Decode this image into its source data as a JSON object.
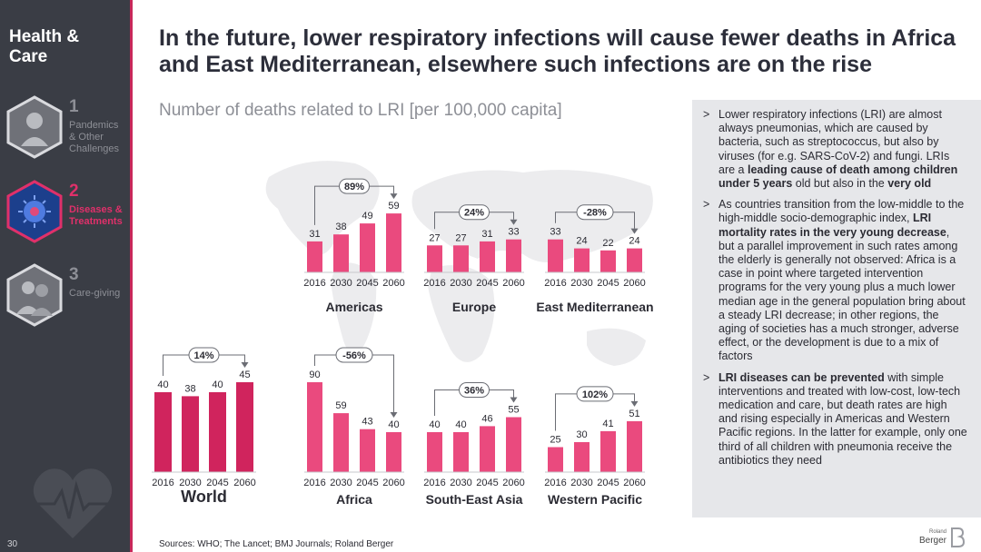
{
  "sidebar": {
    "brand": "Health & Care",
    "items": [
      {
        "num": "1",
        "label": "Pandemics & Other Challenges"
      },
      {
        "num": "2",
        "label": "Diseases & Treatments"
      },
      {
        "num": "3",
        "label": "Care-giving"
      }
    ],
    "page_number": "30"
  },
  "header": {
    "title": "In the future, lower respiratory infections will cause fewer deaths in Africa and East Mediterranean, elsewhere such infections are on the rise",
    "subtitle": "Number of deaths related to LRI [per 100,000 capita]"
  },
  "chart_data": {
    "type": "bar",
    "title": "Number of deaths related to LRI [per 100,000 capita]",
    "categories": [
      "2016",
      "2030",
      "2045",
      "2060"
    ],
    "series": [
      {
        "name": "World",
        "values": [
          40,
          38,
          40,
          45
        ],
        "change": "14%"
      },
      {
        "name": "Americas",
        "values": [
          31,
          38,
          49,
          59
        ],
        "change": "89%"
      },
      {
        "name": "Europe",
        "values": [
          27,
          27,
          31,
          33
        ],
        "change": "24%"
      },
      {
        "name": "East Mediterranean",
        "values": [
          33,
          24,
          22,
          24
        ],
        "change": "-28%"
      },
      {
        "name": "Africa",
        "values": [
          90,
          59,
          43,
          40
        ],
        "change": "-56%"
      },
      {
        "name": "South-East Asia",
        "values": [
          40,
          40,
          46,
          55
        ],
        "change": "36%"
      },
      {
        "name": "Western Pacific",
        "values": [
          25,
          30,
          41,
          51
        ],
        "change": "102%"
      }
    ],
    "colors": {
      "world": "#d0245d",
      "region": "#ea4a7e"
    }
  },
  "notes": [
    {
      "parts": [
        {
          "t": "Lower respiratory infections (LRI) are almost always pneumonias, which are caused by bacteria, such as streptococcus, but also by viruses (for e.g. SARS-CoV-2) and fungi. LRIs are a ",
          "b": false
        },
        {
          "t": "leading cause of death among children under 5 years",
          "b": true
        },
        {
          "t": " old but also in the ",
          "b": false
        },
        {
          "t": "very old",
          "b": true
        }
      ]
    },
    {
      "parts": [
        {
          "t": "As countries transition from the low-middle to the high-middle socio-demographic index, ",
          "b": false
        },
        {
          "t": "LRI mortality rates in the very young decrease",
          "b": true
        },
        {
          "t": ", but a parallel improvement in such rates among the elderly is generally not observed: Africa is a case in point where targeted intervention programs for the very young plus a much lower median age in the general population bring about a steady LRI decrease; in other regions, the aging of societies has a much stronger, adverse effect, or the development is due to a mix of factors",
          "b": false
        }
      ]
    },
    {
      "parts": [
        {
          "t": "LRI diseases can be prevented",
          "b": true
        },
        {
          "t": " with simple interventions and treated with low-cost, low-tech medication and care, but death rates are high and rising especially in Americas and Western Pacific regions. In the latter for example, only one third of all children with pneumonia receive the antibiotics they need",
          "b": false
        }
      ]
    }
  ],
  "footer": {
    "source": "Sources: WHO; The Lancet; BMJ Journals; Roland Berger",
    "logo_small": "Roland",
    "logo_name": "Berger"
  },
  "icons": {
    "bullet": ">"
  }
}
